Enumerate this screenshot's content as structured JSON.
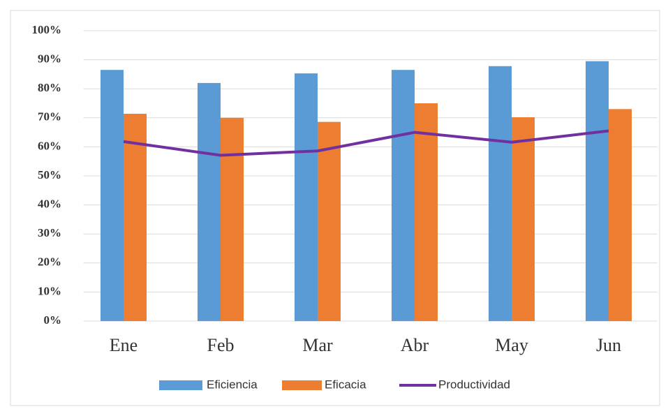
{
  "chart_data": {
    "type": "bar",
    "categories": [
      "Ene",
      "Feb",
      "Mar",
      "Abr",
      "May",
      "Jun"
    ],
    "series": [
      {
        "name": "Eficiencia",
        "color": "#5b9bd5",
        "values": [
          86.5,
          82,
          85.3,
          86.5,
          87.8,
          89.5
        ]
      },
      {
        "name": "Eficacia",
        "color": "#ed7d31",
        "values": [
          71.4,
          70,
          68.6,
          75,
          70.2,
          73
        ]
      },
      {
        "name": "Productividad",
        "color": "#7030a0",
        "type": "line",
        "values": [
          61.8,
          57.1,
          58.6,
          65,
          61.6,
          65.5
        ]
      }
    ],
    "ylim": [
      0,
      100
    ],
    "yticks": [
      {
        "value": 0,
        "label": "0%"
      },
      {
        "value": 10,
        "label": "10%"
      },
      {
        "value": 20,
        "label": "20%"
      },
      {
        "value": 30,
        "label": "30%"
      },
      {
        "value": 40,
        "label": "40%"
      },
      {
        "value": 50,
        "label": "50%"
      },
      {
        "value": 60,
        "label": "60%"
      },
      {
        "value": 70,
        "label": "70%"
      },
      {
        "value": 80,
        "label": "80%"
      },
      {
        "value": 90,
        "label": "90%"
      },
      {
        "value": 100,
        "label": "100%"
      }
    ],
    "grid": true,
    "legend": "bottom"
  }
}
